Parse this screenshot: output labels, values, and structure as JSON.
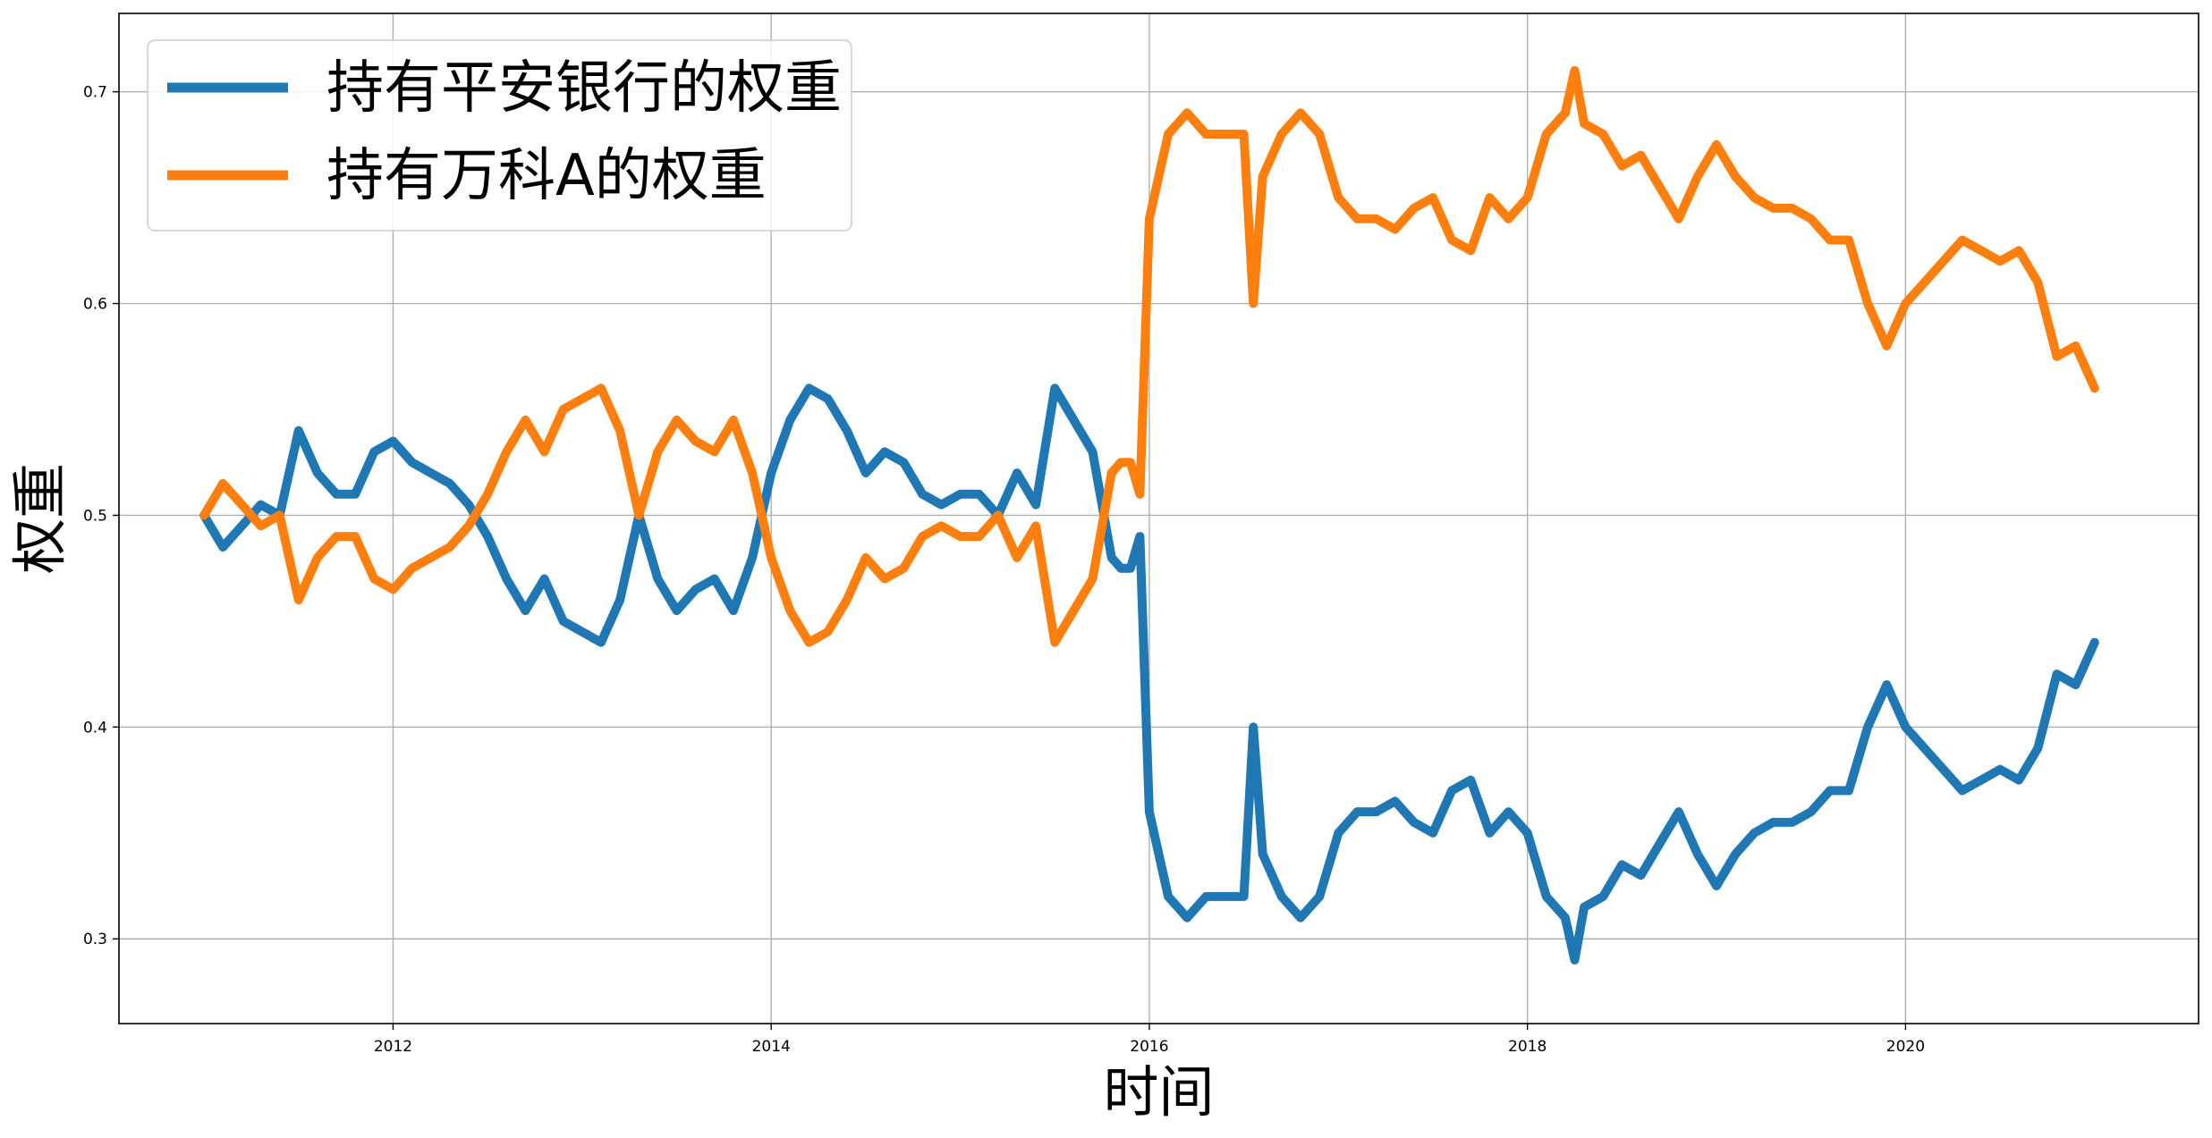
{
  "chart_data": {
    "type": "line",
    "title": "",
    "xlabel": "时间",
    "ylabel": "权重",
    "xlim": [
      2010.55,
      2021.55
    ],
    "ylim": [
      0.26,
      0.737
    ],
    "x_ticks": [
      2012,
      2014,
      2016,
      2018,
      2020
    ],
    "x_tick_labels": [
      "2012",
      "2014",
      "2016",
      "2018",
      "2020"
    ],
    "y_ticks": [
      0.3,
      0.4,
      0.5,
      0.6,
      0.7
    ],
    "y_tick_labels": [
      "0.3",
      "0.4",
      "0.5",
      "0.6",
      "0.7"
    ],
    "grid": true,
    "legend_position": "upper-left",
    "series": [
      {
        "name": "持有平安银行的权重",
        "color": "#1f77b4",
        "x": [
          2011.0,
          2011.1,
          2011.2,
          2011.3,
          2011.4,
          2011.5,
          2011.6,
          2011.7,
          2011.8,
          2011.9,
          2012.0,
          2012.1,
          2012.2,
          2012.3,
          2012.4,
          2012.5,
          2012.6,
          2012.7,
          2012.8,
          2012.9,
          2013.0,
          2013.1,
          2013.2,
          2013.3,
          2013.4,
          2013.5,
          2013.6,
          2013.7,
          2013.8,
          2013.9,
          2014.0,
          2014.1,
          2014.2,
          2014.3,
          2014.4,
          2014.5,
          2014.6,
          2014.7,
          2014.8,
          2014.9,
          2015.0,
          2015.1,
          2015.2,
          2015.3,
          2015.4,
          2015.5,
          2015.6,
          2015.7,
          2015.8,
          2015.85,
          2015.9,
          2015.95,
          2016.0,
          2016.1,
          2016.2,
          2016.3,
          2016.4,
          2016.5,
          2016.55,
          2016.6,
          2016.7,
          2016.8,
          2016.9,
          2017.0,
          2017.1,
          2017.2,
          2017.3,
          2017.4,
          2017.5,
          2017.6,
          2017.7,
          2017.8,
          2017.9,
          2018.0,
          2018.1,
          2018.2,
          2018.25,
          2018.3,
          2018.4,
          2018.5,
          2018.6,
          2018.7,
          2018.8,
          2018.9,
          2019.0,
          2019.1,
          2019.2,
          2019.3,
          2019.4,
          2019.5,
          2019.6,
          2019.7,
          2019.8,
          2019.9,
          2020.0,
          2020.1,
          2020.2,
          2020.3,
          2020.4,
          2020.5,
          2020.6,
          2020.7,
          2020.8,
          2020.9,
          2021.0
        ],
        "y": [
          0.5,
          0.485,
          0.495,
          0.505,
          0.5,
          0.54,
          0.52,
          0.51,
          0.51,
          0.53,
          0.535,
          0.525,
          0.52,
          0.515,
          0.505,
          0.49,
          0.47,
          0.455,
          0.47,
          0.45,
          0.445,
          0.44,
          0.46,
          0.5,
          0.47,
          0.455,
          0.465,
          0.47,
          0.455,
          0.48,
          0.52,
          0.545,
          0.56,
          0.555,
          0.54,
          0.52,
          0.53,
          0.525,
          0.51,
          0.505,
          0.51,
          0.51,
          0.5,
          0.52,
          0.505,
          0.56,
          0.545,
          0.53,
          0.48,
          0.475,
          0.475,
          0.49,
          0.36,
          0.32,
          0.31,
          0.32,
          0.32,
          0.32,
          0.4,
          0.34,
          0.32,
          0.31,
          0.32,
          0.35,
          0.36,
          0.36,
          0.365,
          0.355,
          0.35,
          0.37,
          0.375,
          0.35,
          0.36,
          0.35,
          0.32,
          0.31,
          0.29,
          0.315,
          0.32,
          0.335,
          0.33,
          0.345,
          0.36,
          0.34,
          0.325,
          0.34,
          0.35,
          0.355,
          0.355,
          0.36,
          0.37,
          0.37,
          0.4,
          0.42,
          0.4,
          0.39,
          0.38,
          0.37,
          0.375,
          0.38,
          0.375,
          0.39,
          0.425,
          0.42,
          0.44
        ]
      },
      {
        "name": "持有万科A的权重",
        "color": "#ff7f0e",
        "x": [
          2011.0,
          2011.1,
          2011.2,
          2011.3,
          2011.4,
          2011.5,
          2011.6,
          2011.7,
          2011.8,
          2011.9,
          2012.0,
          2012.1,
          2012.2,
          2012.3,
          2012.4,
          2012.5,
          2012.6,
          2012.7,
          2012.8,
          2012.9,
          2013.0,
          2013.1,
          2013.2,
          2013.3,
          2013.4,
          2013.5,
          2013.6,
          2013.7,
          2013.8,
          2013.9,
          2014.0,
          2014.1,
          2014.2,
          2014.3,
          2014.4,
          2014.5,
          2014.6,
          2014.7,
          2014.8,
          2014.9,
          2015.0,
          2015.1,
          2015.2,
          2015.3,
          2015.4,
          2015.5,
          2015.6,
          2015.7,
          2015.8,
          2015.85,
          2015.9,
          2015.95,
          2016.0,
          2016.1,
          2016.2,
          2016.3,
          2016.4,
          2016.5,
          2016.55,
          2016.6,
          2016.7,
          2016.8,
          2016.9,
          2017.0,
          2017.1,
          2017.2,
          2017.3,
          2017.4,
          2017.5,
          2017.6,
          2017.7,
          2017.8,
          2017.9,
          2018.0,
          2018.1,
          2018.2,
          2018.25,
          2018.3,
          2018.4,
          2018.5,
          2018.6,
          2018.7,
          2018.8,
          2018.9,
          2019.0,
          2019.1,
          2019.2,
          2019.3,
          2019.4,
          2019.5,
          2019.6,
          2019.7,
          2019.8,
          2019.9,
          2020.0,
          2020.1,
          2020.2,
          2020.3,
          2020.4,
          2020.5,
          2020.6,
          2020.7,
          2020.8,
          2020.9,
          2021.0
        ],
        "y": [
          0.5,
          0.515,
          0.505,
          0.495,
          0.5,
          0.46,
          0.48,
          0.49,
          0.49,
          0.47,
          0.465,
          0.475,
          0.48,
          0.485,
          0.495,
          0.51,
          0.53,
          0.545,
          0.53,
          0.55,
          0.555,
          0.56,
          0.54,
          0.5,
          0.53,
          0.545,
          0.535,
          0.53,
          0.545,
          0.52,
          0.48,
          0.455,
          0.44,
          0.445,
          0.46,
          0.48,
          0.47,
          0.475,
          0.49,
          0.495,
          0.49,
          0.49,
          0.5,
          0.48,
          0.495,
          0.44,
          0.455,
          0.47,
          0.52,
          0.525,
          0.525,
          0.51,
          0.64,
          0.68,
          0.69,
          0.68,
          0.68,
          0.68,
          0.6,
          0.66,
          0.68,
          0.69,
          0.68,
          0.65,
          0.64,
          0.64,
          0.635,
          0.645,
          0.65,
          0.63,
          0.625,
          0.65,
          0.64,
          0.65,
          0.68,
          0.69,
          0.71,
          0.685,
          0.68,
          0.665,
          0.67,
          0.655,
          0.64,
          0.66,
          0.675,
          0.66,
          0.65,
          0.645,
          0.645,
          0.64,
          0.63,
          0.63,
          0.6,
          0.58,
          0.6,
          0.61,
          0.62,
          0.63,
          0.625,
          0.62,
          0.625,
          0.61,
          0.575,
          0.58,
          0.56
        ]
      }
    ]
  }
}
